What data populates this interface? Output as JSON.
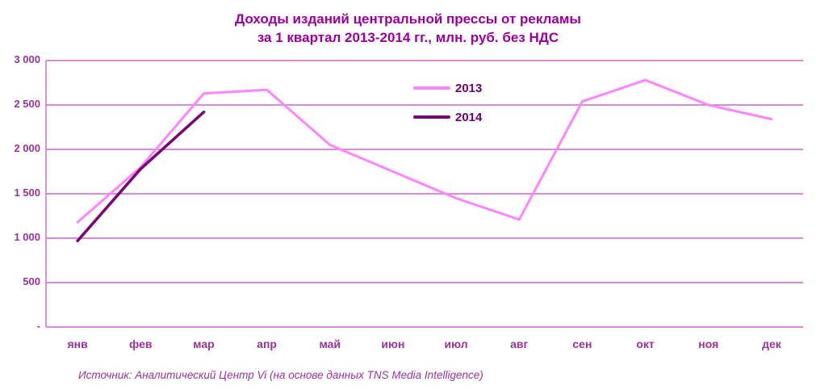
{
  "title": {
    "line1": "Доходы изданий центральной прессы от рекламы",
    "line2": "за 1 квартал 2013-2014 гг., млн. руб. без НДС"
  },
  "source": "Источник: Аналитический Центр Vi (на основе данных TNS Media Intelligence)",
  "colors": {
    "title": "#9b009b",
    "axis_label": "#993399",
    "gridline": "#cc66cc",
    "legend_text": "#6f006f",
    "series_2013": "#ff85ff",
    "series_2014": "#770877"
  },
  "chart_data": {
    "type": "line",
    "title": "Доходы изданий центральной прессы от рекламы за 1 квартал 2013-2014 гг., млн. руб. без НДС",
    "categories": [
      "янв",
      "фев",
      "мар",
      "апр",
      "май",
      "июн",
      "июл",
      "авг",
      "сен",
      "окт",
      "ноя",
      "дек"
    ],
    "series": [
      {
        "name": "2013",
        "color": "#ff85ff",
        "values": [
          1180,
          1800,
          2630,
          2670,
          2050,
          1750,
          1450,
          1210,
          2540,
          2780,
          2500,
          2340
        ]
      },
      {
        "name": "2014",
        "color": "#770877",
        "values": [
          970,
          1780,
          2420,
          null,
          null,
          null,
          null,
          null,
          null,
          null,
          null,
          null
        ]
      }
    ],
    "ylim": [
      0,
      3000
    ],
    "ytick_step": 500,
    "ytick_labels": [
      "3 000",
      "2 500",
      "2 000",
      "1 500",
      "1 000",
      "500",
      "-"
    ],
    "grid": true,
    "legend_position": "top-center"
  }
}
